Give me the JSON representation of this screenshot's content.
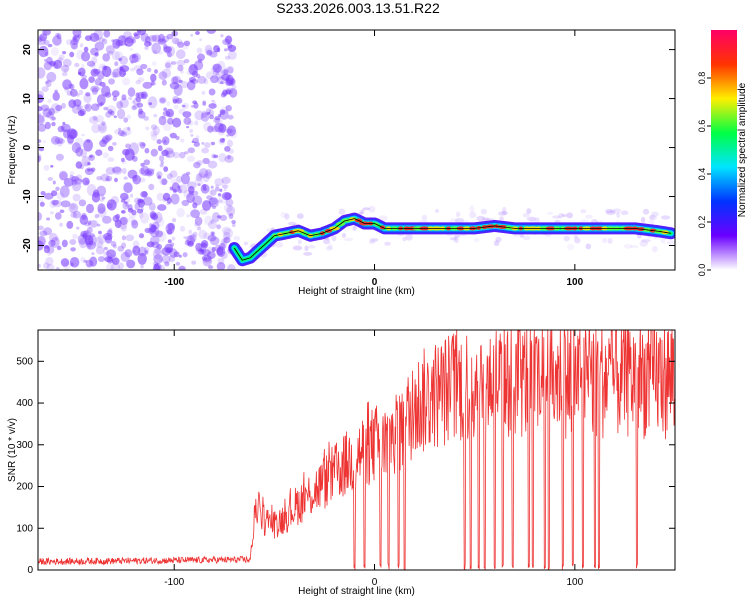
{
  "title": "S233.2026.003.13.51.R22",
  "chart_data": [
    {
      "type": "heatmap",
      "xlabel": "Height of straight line (km)",
      "ylabel": "Frequency (Hz)",
      "xlim": [
        -168,
        150
      ],
      "ylim": [
        -25,
        24
      ],
      "xticks": [
        -100,
        0,
        100
      ],
      "yticks": [
        -20,
        -10,
        0,
        10,
        20
      ],
      "colorbar": {
        "label": "Normalized spectral amplitude",
        "range": [
          0,
          1
        ],
        "ticks": [
          "0.0",
          "0.2",
          "0.4",
          "0.6",
          "0.8"
        ],
        "colors": [
          "#ffffff",
          "#6a00ff",
          "#0033ff",
          "#00e5ff",
          "#00ff44",
          "#ffee00",
          "#ff3300",
          "#ff0066"
        ]
      },
      "noise_region": {
        "x_end": -70,
        "color": "#7a3cff"
      },
      "ridge": {
        "x": [
          -70,
          -66,
          -62,
          -58,
          -54,
          -50,
          -44,
          -38,
          -32,
          -26,
          -20,
          -15,
          -10,
          -5,
          0,
          5,
          10,
          20,
          30,
          40,
          50,
          60,
          70,
          80,
          90,
          100,
          110,
          120,
          130,
          140,
          148
        ],
        "y": [
          -20.5,
          -23,
          -22.5,
          -21,
          -19.5,
          -18,
          -17.5,
          -17,
          -18,
          -17.5,
          -16.5,
          -15,
          -14.5,
          -15.5,
          -15.5,
          -16.5,
          -16.5,
          -16.5,
          -16.5,
          -16.5,
          -16.5,
          -16,
          -16.5,
          -16.5,
          -16.5,
          -16.5,
          -16.5,
          -16.5,
          -16.5,
          -17,
          -17.5
        ]
      },
      "line_color": "#000000"
    },
    {
      "type": "line",
      "xlabel": "Height of straight line (km)",
      "ylabel": "SNR (10 * v/v)",
      "xlim": [
        -168,
        150
      ],
      "ylim": [
        0,
        575
      ],
      "xticks": [
        -100,
        0,
        100
      ],
      "yticks": [
        0,
        100,
        200,
        300,
        400,
        500
      ],
      "series": [
        {
          "color": "#ee3333",
          "envelope": {
            "x": [
              -168,
              -120,
              -62,
              -59,
              -55,
              -50,
              -45,
              -40,
              -35,
              -30,
              -25,
              -20,
              -15,
              -10,
              -5,
              0,
              5,
              10,
              15,
              20,
              30,
              40,
              50,
              60,
              70,
              80,
              90,
              100,
              110,
              120,
              130,
              140,
              150
            ],
            "y": [
              20,
              22,
              25,
              160,
              120,
              110,
              125,
              150,
              170,
              190,
              210,
              230,
              250,
              270,
              290,
              300,
              315,
              330,
              350,
              390,
              420,
              440,
              450,
              455,
              455,
              455,
              460,
              460,
              460,
              460,
              460,
              460,
              460
            ]
          },
          "dropouts_x": [
            -10,
            -5,
            3,
            7,
            12,
            15,
            45,
            48,
            52,
            55,
            60,
            64,
            69,
            77,
            79,
            85,
            87,
            94,
            99,
            104,
            110,
            112,
            131
          ]
        }
      ]
    }
  ]
}
